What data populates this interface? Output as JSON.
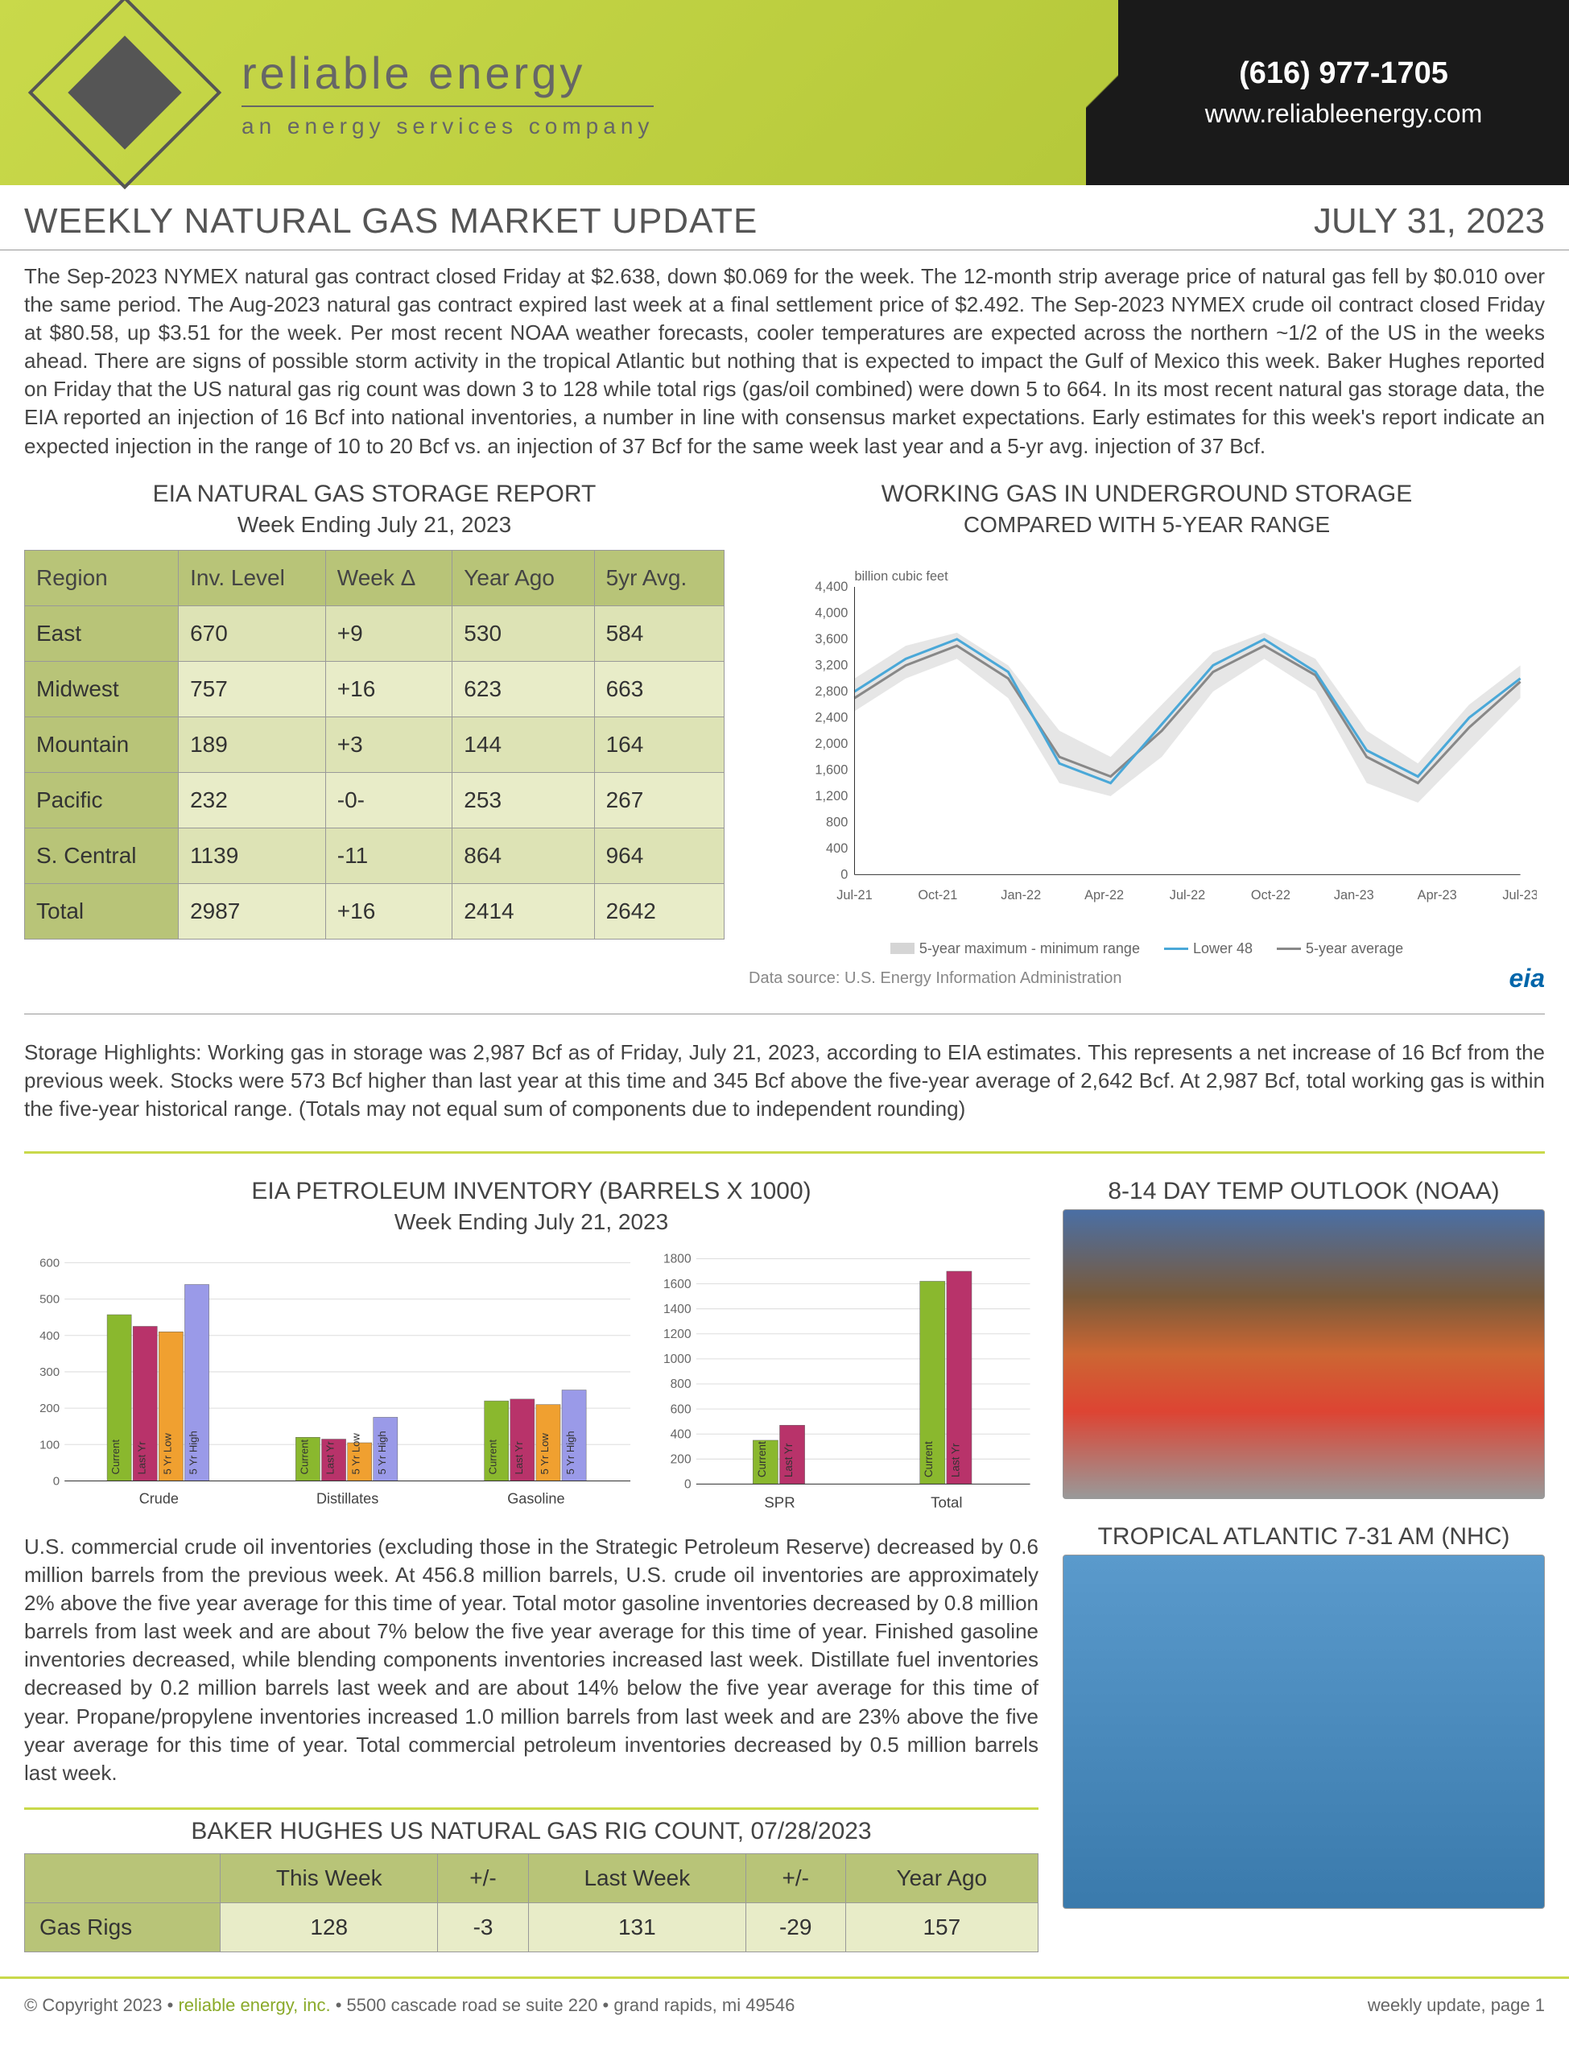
{
  "header": {
    "brand_name": "reliable energy",
    "brand_tag": "an energy services company",
    "phone": "(616) 977-1705",
    "url": "www.reliableenergy.com"
  },
  "title": "WEEKLY NATURAL GAS MARKET UPDATE",
  "date": "JULY 31, 2023",
  "intro": "The Sep-2023 NYMEX natural gas contract closed Friday at $2.638, down $0.069 for the week. The 12-month strip average price of natural gas fell by $0.010 over the same period. The Aug-2023 natural gas contract expired last week at a final settlement price of $2.492. The Sep-2023 NYMEX crude oil contract closed Friday at $80.58, up $3.51 for the week. Per most recent NOAA weather forecasts, cooler temperatures are expected across the northern ~1/2 of the US in the weeks ahead. There are signs of possible storm activity in the tropical Atlantic but nothing that is expected to impact the Gulf of Mexico this week. Baker Hughes reported on Friday that the US natural gas rig count was down 3 to 128 while total rigs (gas/oil combined) were down 5 to 664. In its most recent natural gas storage data, the EIA reported an injection of 16 Bcf into national inventories, a number in line with consensus market expectations. Early estimates for this week's report indicate an expected injection in the range of 10 to 20 Bcf vs. an injection of 37 Bcf for the same week last year and a 5-yr avg. injection of 37 Bcf.",
  "storage_table": {
    "title": "EIA NATURAL GAS STORAGE REPORT",
    "subtitle": "Week Ending July 21, 2023",
    "columns": [
      "Region",
      "Inv. Level",
      "Week Δ",
      "Year Ago",
      "5yr Avg."
    ],
    "rows": [
      [
        "East",
        "670",
        "+9",
        "530",
        "584"
      ],
      [
        "Midwest",
        "757",
        "+16",
        "623",
        "663"
      ],
      [
        "Mountain",
        "189",
        "+3",
        "144",
        "164"
      ],
      [
        "Pacific",
        "232",
        "-0-",
        "253",
        "267"
      ],
      [
        "S. Central",
        "1139",
        "-11",
        "864",
        "964"
      ],
      [
        "Total",
        "2987",
        "+16",
        "2414",
        "2642"
      ]
    ]
  },
  "storage_chart": {
    "title": "WORKING GAS IN UNDERGROUND STORAGE",
    "subtitle": "COMPARED WITH 5-YEAR RANGE",
    "y_label": "billion cubic feet",
    "y_max": 4400,
    "y_step": 400,
    "x_labels": [
      "Jul-21",
      "Oct-21",
      "Jan-22",
      "Apr-22",
      "Jul-22",
      "Oct-22",
      "Jan-23",
      "Apr-23",
      "Jul-23"
    ],
    "band_color": "#d5d5d5",
    "line1_color": "#4aa8d8",
    "line2_color": "#888888",
    "legend": [
      "5-year maximum - minimum range",
      "Lower 48",
      "5-year average"
    ],
    "source": "Data source:  U.S. Energy Information Administration",
    "band_upper": [
      3000,
      3500,
      3700,
      3200,
      2200,
      1800,
      2600,
      3400,
      3700,
      3300,
      2200,
      1700,
      2600,
      3200
    ],
    "band_lower": [
      2500,
      3000,
      3300,
      2700,
      1400,
      1200,
      1800,
      2800,
      3300,
      2800,
      1400,
      1100,
      1900,
      2700
    ],
    "lower48": [
      2800,
      3300,
      3600,
      3100,
      1700,
      1400,
      2300,
      3200,
      3600,
      3100,
      1900,
      1500,
      2400,
      3000
    ],
    "avg5yr": [
      2700,
      3200,
      3500,
      3000,
      1800,
      1500,
      2200,
      3100,
      3500,
      3050,
      1800,
      1400,
      2250,
      2950
    ]
  },
  "storage_highlights": "Storage Highlights: Working gas in storage was 2,987 Bcf as of Friday, July 21, 2023, according to EIA estimates. This represents a net increase of 16 Bcf from the previous week. Stocks were 573 Bcf higher than last year at this time and 345 Bcf above the five-year average of 2,642 Bcf. At 2,987 Bcf, total working gas is within the five-year historical range. (Totals may not equal sum of components due to independent rounding)",
  "petroleum": {
    "title": "EIA PETROLEUM INVENTORY (BARRELS X 1000)",
    "subtitle": "Week Ending July 21, 2023",
    "chart1": {
      "y_max": 600,
      "y_step": 100,
      "groups": [
        "Crude",
        "Distillates",
        "Gasoline"
      ],
      "series": [
        "Current",
        "Last Yr",
        "5 Yr Low",
        "5 Yr High"
      ],
      "colors": [
        "#8ab82e",
        "#b8336a",
        "#f0a030",
        "#9a9ae8"
      ],
      "values": [
        [
          457,
          425,
          410,
          540
        ],
        [
          120,
          115,
          105,
          175
        ],
        [
          220,
          225,
          210,
          250
        ]
      ]
    },
    "chart2": {
      "y_max": 1800,
      "y_step": 200,
      "groups": [
        "SPR",
        "Total"
      ],
      "series": [
        "Current",
        "Last Yr"
      ],
      "colors": [
        "#8ab82e",
        "#b8336a"
      ],
      "values": [
        [
          350,
          470
        ],
        [
          1620,
          1700
        ]
      ]
    },
    "text": "U.S. commercial crude oil inventories (excluding those in the Strategic Petroleum Reserve) decreased by 0.6 million barrels from the previous week. At 456.8 million barrels, U.S. crude oil inventories are approximately 2% above the five year average for this time of year. Total motor gasoline inventories decreased by 0.8 million barrels from last week and are about 7% below the five year average for this time of year. Finished gasoline inventories decreased, while blending components inventories increased last week. Distillate fuel inventories decreased by 0.2 million barrels last week and are about 14% below the five year average for this time of year. Propane/propylene inventories increased 1.0 million barrels from last week and are 23% above the five year average for this time of year. Total commercial petroleum inventories decreased by 0.5 million barrels last week."
  },
  "temp_outlook_title": "8-14 DAY TEMP OUTLOOK (NOAA)",
  "tropical_title": "TROPICAL ATLANTIC 7-31 AM (NHC)",
  "rig": {
    "title": "BAKER HUGHES US NATURAL GAS RIG COUNT, 07/28/2023",
    "columns": [
      "",
      "This Week",
      "+/-",
      "Last Week",
      "+/-",
      "Year Ago"
    ],
    "rows": [
      [
        "Gas Rigs",
        "128",
        "-3",
        "131",
        "-29",
        "157"
      ]
    ]
  },
  "footer": {
    "left_prefix": "© Copyright 2023  •  ",
    "company": "reliable energy, inc.",
    "left_suffix": "  •  5500 cascade road se  suite 220  •  grand rapids, mi  49546",
    "right": "weekly update, page 1"
  }
}
